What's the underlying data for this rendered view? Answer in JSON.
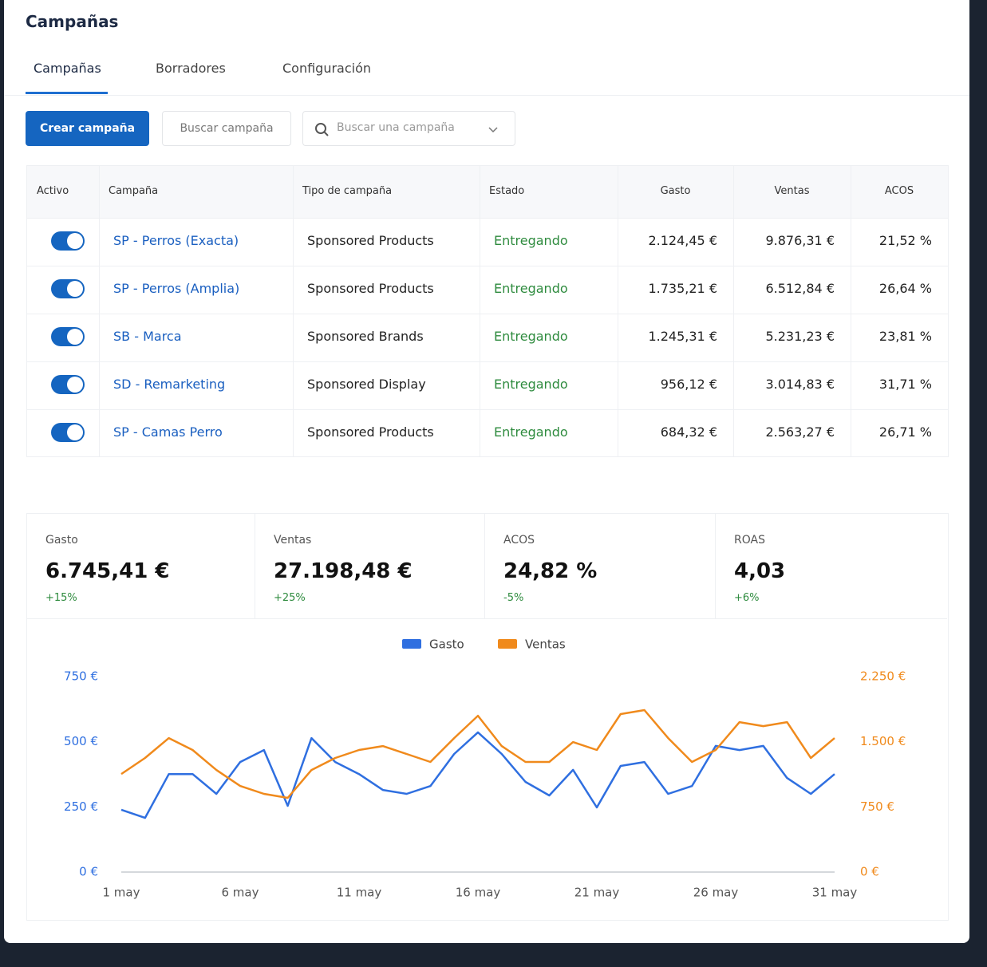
{
  "header": {
    "title": "Campañas"
  },
  "tabs": [
    {
      "label": "Campañas",
      "active": true
    },
    {
      "label": "Borradores",
      "active": false
    },
    {
      "label": "Configuración",
      "active": false
    }
  ],
  "toolbar": {
    "create_button": "Crear campaña",
    "filter_input": "Buscar campaña",
    "search_input": "Buscar una campaña"
  },
  "table": {
    "headers": [
      "Activo",
      "Campaña",
      "Tipo de campaña",
      "Estado",
      "Gasto",
      "Ventas",
      "ACOS"
    ],
    "rows": [
      {
        "active": true,
        "cells": [
          "SP - Perros (Exacta)",
          "Sponsored Products",
          "Entregando",
          "2.124,45 €",
          "9.876,31 €",
          "21,52 %"
        ]
      },
      {
        "active": true,
        "cells": [
          "SP - Perros (Amplia)",
          "Sponsored Products",
          "Entregando",
          "1.735,21 €",
          "6.512,84 €",
          "26,64 %"
        ]
      },
      {
        "active": true,
        "cells": [
          "SB - Marca",
          "Sponsored Brands",
          "Entregando",
          "1.245,31 €",
          "5.231,23 €",
          "23,81 %"
        ]
      },
      {
        "active": true,
        "cells": [
          "SD - Remarketing",
          "Sponsored Display",
          "Entregando",
          "956,12 €",
          "3.014,83 €",
          "31,71 %"
        ]
      },
      {
        "active": true,
        "cells": [
          "SP - Camas Perro",
          "Sponsored Products",
          "Entregando",
          "684,32 €",
          "2.563,27 €",
          "26,71 %"
        ]
      }
    ]
  },
  "kpis": [
    {
      "label": "Gasto",
      "value": "6.745,41 €",
      "change": "+15%"
    },
    {
      "label": "Ventas",
      "value": "27.198,48 €",
      "change": "+25%"
    },
    {
      "label": "ACOS",
      "value": "24,82 %",
      "change": "-5%"
    },
    {
      "label": "ROAS",
      "value": "4,03",
      "change": "+6%"
    }
  ],
  "chart_data": {
    "type": "line",
    "categories": [
      "1 may",
      null,
      null,
      null,
      null,
      "6 may",
      null,
      null,
      null,
      null,
      "11 may",
      null,
      null,
      null,
      null,
      "16 may",
      null,
      null,
      null,
      null,
      "21 may",
      null,
      null,
      null,
      null,
      "26 may",
      null,
      null,
      null,
      null,
      "31 may"
    ],
    "series": [
      {
        "name": "Gasto",
        "color": "#2f6fe0",
        "values": [
          239,
          208,
          376,
          376,
          300,
          422,
          468,
          254,
          514,
          422,
          376,
          315,
          300,
          330,
          453,
          536,
          453,
          346,
          294,
          392,
          248,
          407,
          422,
          300,
          330,
          484,
          468,
          484,
          361,
          300,
          376
        ]
      },
      {
        "name": "Ventas",
        "color": "#f08a1c",
        "axis": "y2",
        "values": [
          1129,
          1313,
          1542,
          1405,
          1175,
          991,
          900,
          854,
          1175,
          1313,
          1405,
          1450,
          1359,
          1267,
          1542,
          1799,
          1450,
          1267,
          1267,
          1496,
          1405,
          1818,
          1864,
          1542,
          1267,
          1405,
          1726,
          1680,
          1726,
          1313,
          1542
        ]
      }
    ],
    "ylim": [
      0,
      750
    ],
    "yticks": [
      {
        "value": 0,
        "label": "0 €"
      },
      {
        "value": 250,
        "label": "250 €"
      },
      {
        "value": 500,
        "label": "500 €"
      },
      {
        "value": 750,
        "label": "750 €"
      }
    ],
    "y2lim": [
      0,
      2250
    ],
    "y2ticks": [
      {
        "value": 0,
        "label": "0 €"
      },
      {
        "value": 750,
        "label": "750 €"
      },
      {
        "value": 1500,
        "label": "1.500 €"
      },
      {
        "value": 2250,
        "label": "2.250 €"
      }
    ],
    "legend": "top"
  }
}
